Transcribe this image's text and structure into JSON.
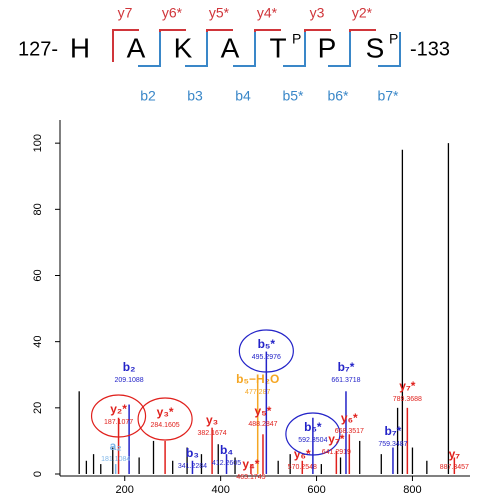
{
  "peptide": {
    "start": "127-",
    "end": "-133",
    "residues": [
      {
        "aa": "H"
      },
      {
        "aa": "A"
      },
      {
        "aa": "K"
      },
      {
        "aa": "A"
      },
      {
        "aa": "T",
        "mod": "P"
      },
      {
        "aa": "P"
      },
      {
        "aa": "S",
        "mod": "P"
      }
    ],
    "y_ions": [
      "y7",
      "y6*",
      "y5*",
      "y4*",
      "y3",
      "y2*"
    ],
    "b_ions": [
      "b2",
      "b3",
      "b4",
      "b5*",
      "b6*",
      "b7*"
    ],
    "y_color": "#d0353a",
    "b_color": "#3a87c8"
  },
  "chart_data": {
    "type": "spectrum",
    "xlim": [
      65,
      920
    ],
    "ylim": [
      0,
      107
    ],
    "xticks": [
      200,
      400,
      600,
      800
    ],
    "yticks": [
      0,
      20,
      40,
      60,
      80,
      100
    ],
    "unassigned": {
      "color": "#000000",
      "x": [
        105,
        120,
        135,
        150,
        175,
        230,
        260,
        300,
        330,
        360,
        395,
        430,
        520,
        545,
        610,
        650,
        690,
        735,
        769,
        779,
        800,
        830,
        875
      ],
      "values": [
        25,
        4,
        6,
        3,
        8,
        5,
        10,
        4,
        8,
        6,
        9,
        5,
        4,
        6,
        3,
        5,
        10,
        6,
        20,
        98,
        8,
        4,
        100
      ]
    },
    "peaks": [
      {
        "ion": "b₂",
        "x": 209.1088,
        "value": 21,
        "color": "#2323c8"
      },
      {
        "ion": "y₂*",
        "x": 187.1077,
        "value": 17,
        "color": "#e0201c",
        "circled": true
      },
      {
        "ion": "a₂",
        "x": 181.1084,
        "value": 3,
        "color": "#7fb6e8"
      },
      {
        "ion": "y₃*",
        "x": 284.1605,
        "value": 10,
        "color": "#e0201c",
        "circled": true
      },
      {
        "ion": "y₃",
        "x": 382.1674,
        "value": 14,
        "color": "#e0201c"
      },
      {
        "ion": "b₃",
        "x": 341.2284,
        "value": 4,
        "color": "#2323c8"
      },
      {
        "ion": "b₄",
        "x": 412.2605,
        "value": 6,
        "color": "#2323c8"
      },
      {
        "ion": "b₅−H₂O",
        "x": 477.287,
        "value": 28,
        "color": "#f5a623"
      },
      {
        "ion": "b₅*",
        "x": 495.2976,
        "value": 37,
        "color": "#2323c8",
        "circled": true
      },
      {
        "ion": "y₅*",
        "x": 488.2847,
        "value": 12,
        "color": "#e0201c"
      },
      {
        "ion": "y₄*",
        "x": 463.1745,
        "value": 3,
        "color": "#e0201c"
      },
      {
        "ion": "y₆*",
        "x": 570.2548,
        "value": 4,
        "color": "#e0201c"
      },
      {
        "ion": "b₆*",
        "x": 592.3504,
        "value": 17,
        "color": "#2323c8",
        "circled": true
      },
      {
        "ion": "y₇*",
        "x": 641.2919,
        "value": 7,
        "color": "#e0201c"
      },
      {
        "ion": "b₇*",
        "x": 661.3718,
        "value": 25,
        "color": "#2323c8"
      },
      {
        "ion": "y₆*",
        "x": 668.3517,
        "value": 12,
        "color": "#e0201c"
      },
      {
        "ion": "y₇*",
        "x": 789.3688,
        "value": 20,
        "color": "#e0201c"
      },
      {
        "ion": "b₇*",
        "x": 759.3487,
        "value": 8,
        "color": "#2323c8"
      },
      {
        "ion": "y₇",
        "x": 887.3457,
        "value": 5,
        "color": "#e0201c"
      }
    ]
  }
}
